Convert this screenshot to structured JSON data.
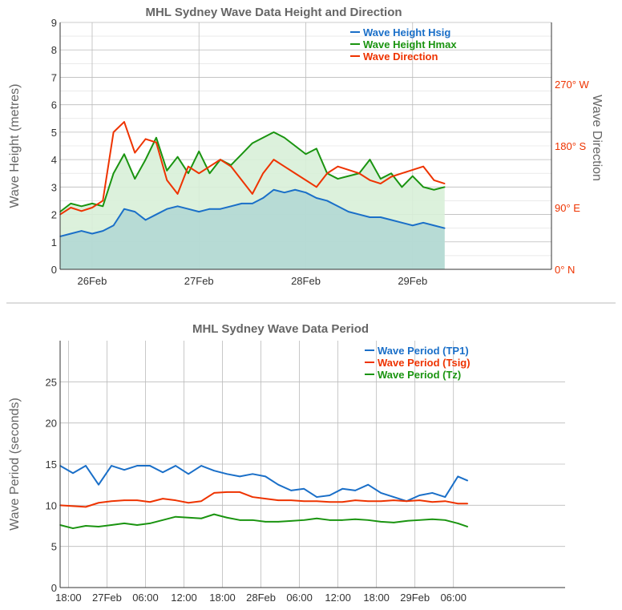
{
  "colors": {
    "hsig": "#1a6fc8",
    "hmax": "#1a9410",
    "direction": "#ee3300",
    "tp1": "#1a6fc8",
    "tsig": "#ee3300",
    "tz": "#1a9410",
    "grid": "#bbbbbb",
    "hminor": "#dddddd",
    "divider": "#bbbbbb",
    "hsig_fill": "#b2d8d4",
    "hmax_fill": "#d8f0d8"
  },
  "chart_data": [
    {
      "type": "area",
      "title": "MHL Sydney Wave Data Height and Direction",
      "ylabel": "Wave Height (metres)",
      "y2label": "Wave Direction",
      "ylim": [
        0,
        9
      ],
      "yticks": [
        0,
        1,
        2,
        3,
        4,
        5,
        6,
        7,
        8,
        9
      ],
      "y2lim": [
        0,
        360
      ],
      "y2ticks": [
        {
          "value": 0,
          "label": "0° N"
        },
        {
          "value": 90,
          "label": "90° E"
        },
        {
          "value": 180,
          "label": "180° S"
        },
        {
          "value": 270,
          "label": "270° W"
        }
      ],
      "xlim": [
        0,
        4.6
      ],
      "xticks": [
        {
          "value": 0.3,
          "label": "26Feb"
        },
        {
          "value": 1.3,
          "label": "27Feb"
        },
        {
          "value": 2.3,
          "label": "28Feb"
        },
        {
          "value": 3.3,
          "label": "29Feb"
        }
      ],
      "grid": true,
      "legend_position": "top-right",
      "series": [
        {
          "name": "Wave Height Hsig",
          "color_key": "hsig",
          "axis": "left",
          "fill": "hsig_fill",
          "x": [
            0,
            0.1,
            0.2,
            0.3,
            0.4,
            0.5,
            0.6,
            0.7,
            0.8,
            0.9,
            1,
            1.1,
            1.2,
            1.3,
            1.4,
            1.5,
            1.6,
            1.7,
            1.8,
            1.9,
            2,
            2.1,
            2.2,
            2.3,
            2.4,
            2.5,
            2.6,
            2.7,
            2.8,
            2.9,
            3,
            3.1,
            3.2,
            3.3,
            3.4,
            3.5,
            3.6
          ],
          "values": [
            1.2,
            1.3,
            1.4,
            1.3,
            1.4,
            1.6,
            2.2,
            2.1,
            1.8,
            2,
            2.2,
            2.3,
            2.2,
            2.1,
            2.2,
            2.2,
            2.3,
            2.4,
            2.4,
            2.6,
            2.9,
            2.8,
            2.9,
            2.8,
            2.6,
            2.5,
            2.3,
            2.1,
            2,
            1.9,
            1.9,
            1.8,
            1.7,
            1.6,
            1.7,
            1.6,
            1.5
          ]
        },
        {
          "name": "Wave Height Hmax",
          "color_key": "hmax",
          "axis": "left",
          "fill": "hmax_fill",
          "x": [
            0,
            0.1,
            0.2,
            0.3,
            0.4,
            0.5,
            0.6,
            0.7,
            0.8,
            0.9,
            1,
            1.1,
            1.2,
            1.3,
            1.4,
            1.5,
            1.6,
            1.7,
            1.8,
            1.9,
            2,
            2.1,
            2.2,
            2.3,
            2.4,
            2.5,
            2.6,
            2.7,
            2.8,
            2.9,
            3,
            3.1,
            3.2,
            3.3,
            3.4,
            3.5,
            3.6
          ],
          "values": [
            2.1,
            2.4,
            2.3,
            2.4,
            2.3,
            3.5,
            4.2,
            3.3,
            4,
            4.8,
            3.6,
            4.1,
            3.5,
            4.3,
            3.5,
            4,
            3.8,
            4.2,
            4.6,
            4.8,
            5,
            4.8,
            4.5,
            4.2,
            4.4,
            3.5,
            3.3,
            3.4,
            3.5,
            4,
            3.3,
            3.5,
            3,
            3.4,
            3,
            2.9,
            3
          ]
        },
        {
          "name": "Wave Direction",
          "color_key": "direction",
          "axis": "right",
          "x": [
            0,
            0.1,
            0.2,
            0.3,
            0.4,
            0.5,
            0.6,
            0.7,
            0.8,
            0.9,
            1,
            1.1,
            1.2,
            1.3,
            1.4,
            1.5,
            1.6,
            1.7,
            1.8,
            1.9,
            2,
            2.1,
            2.2,
            2.3,
            2.4,
            2.5,
            2.6,
            2.7,
            2.8,
            2.9,
            3,
            3.1,
            3.2,
            3.3,
            3.4,
            3.5,
            3.6
          ],
          "values": [
            80,
            90,
            85,
            90,
            100,
            200,
            215,
            170,
            190,
            185,
            130,
            110,
            150,
            140,
            150,
            160,
            150,
            130,
            110,
            140,
            160,
            150,
            140,
            130,
            120,
            140,
            150,
            145,
            140,
            130,
            125,
            135,
            140,
            145,
            150,
            130,
            125
          ]
        }
      ]
    },
    {
      "type": "line",
      "title": "MHL Sydney Wave Data Period",
      "ylabel": "Wave Period (seconds)",
      "ylim": [
        0,
        30
      ],
      "yticks": [
        0,
        5,
        10,
        15,
        20,
        25
      ],
      "xlim": [
        0,
        78.7
      ],
      "xticks": [
        {
          "value": 1.3,
          "label": "18:00"
        },
        {
          "value": 7.3,
          "label": "27Feb"
        },
        {
          "value": 13.3,
          "label": "06:00"
        },
        {
          "value": 19.3,
          "label": "12:00"
        },
        {
          "value": 25.3,
          "label": "18:00"
        },
        {
          "value": 31.3,
          "label": "28Feb"
        },
        {
          "value": 37.3,
          "label": "06:00"
        },
        {
          "value": 43.3,
          "label": "12:00"
        },
        {
          "value": 49.3,
          "label": "18:00"
        },
        {
          "value": 55.3,
          "label": "29Feb"
        },
        {
          "value": 61.3,
          "label": "06:00"
        }
      ],
      "grid": true,
      "legend_position": "top-right",
      "series": [
        {
          "name": "Wave Period (TP1)",
          "color_key": "tp1",
          "x": [
            0,
            2,
            4,
            6,
            8,
            10,
            12,
            14,
            16,
            18,
            20,
            22,
            24,
            26,
            28,
            30,
            32,
            34,
            36,
            38,
            40,
            42,
            44,
            46,
            48,
            50,
            52,
            54,
            56,
            58,
            60,
            62,
            63.5
          ],
          "values": [
            14.8,
            13.9,
            14.8,
            12.5,
            14.8,
            14.3,
            14.8,
            14.8,
            14,
            14.8,
            13.8,
            14.8,
            14.2,
            13.8,
            13.5,
            13.8,
            13.5,
            12.5,
            11.8,
            12,
            11,
            11.2,
            12,
            11.8,
            12.5,
            11.5,
            11,
            10.5,
            11.2,
            11.5,
            11,
            13.5,
            13
          ]
        },
        {
          "name": "Wave Period (Tsig)",
          "color_key": "tsig",
          "x": [
            0,
            2,
            4,
            6,
            8,
            10,
            12,
            14,
            16,
            18,
            20,
            22,
            24,
            26,
            28,
            30,
            32,
            34,
            36,
            38,
            40,
            42,
            44,
            46,
            48,
            50,
            52,
            54,
            56,
            58,
            60,
            62,
            63.5
          ],
          "values": [
            10,
            9.9,
            9.8,
            10.3,
            10.5,
            10.6,
            10.6,
            10.4,
            10.8,
            10.6,
            10.3,
            10.5,
            11.5,
            11.6,
            11.6,
            11,
            10.8,
            10.6,
            10.6,
            10.5,
            10.5,
            10.4,
            10.4,
            10.6,
            10.5,
            10.5,
            10.6,
            10.5,
            10.6,
            10.4,
            10.5,
            10.2,
            10.2
          ]
        },
        {
          "name": "Wave Period (Tz)",
          "color_key": "tz",
          "x": [
            0,
            2,
            4,
            6,
            8,
            10,
            12,
            14,
            16,
            18,
            20,
            22,
            24,
            26,
            28,
            30,
            32,
            34,
            36,
            38,
            40,
            42,
            44,
            46,
            48,
            50,
            52,
            54,
            56,
            58,
            60,
            62,
            63.5
          ],
          "values": [
            7.6,
            7.2,
            7.5,
            7.4,
            7.6,
            7.8,
            7.6,
            7.8,
            8.2,
            8.6,
            8.5,
            8.4,
            8.9,
            8.5,
            8.2,
            8.2,
            8,
            8,
            8.1,
            8.2,
            8.4,
            8.2,
            8.2,
            8.3,
            8.2,
            8,
            7.9,
            8.1,
            8.2,
            8.3,
            8.2,
            7.8,
            7.4
          ]
        }
      ]
    }
  ]
}
